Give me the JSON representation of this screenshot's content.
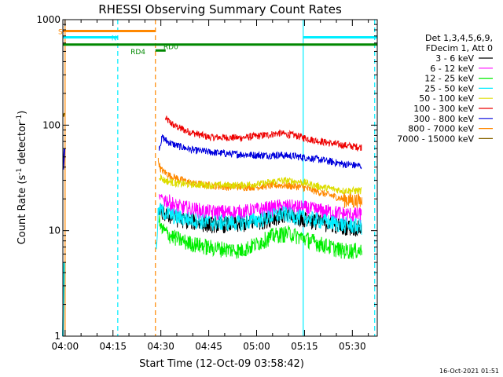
{
  "chart_data": {
    "type": "line",
    "title": "RHESSI Observing Summary Count Rates",
    "xlabel": "Start Time (12-Oct-09 03:58:42)",
    "ylabel_main": "Count Rate (s",
    "ylabel_sup1": "-1",
    "ylabel_mid": " detector",
    "ylabel_sup2": "-1",
    "ylabel_end": ")",
    "x_range_minutes": [
      -0.7,
      97.8
    ],
    "y_log_range": [
      1,
      1000
    ],
    "x_ticks": [
      {
        "min": 0,
        "label": "04:00"
      },
      {
        "min": 15,
        "label": "04:15"
      },
      {
        "min": 30,
        "label": "04:30"
      },
      {
        "min": 45,
        "label": "04:45"
      },
      {
        "min": 60,
        "label": "05:00"
      },
      {
        "min": 75,
        "label": "05:15"
      },
      {
        "min": 90,
        "label": "05:30"
      }
    ],
    "y_ticks": [
      {
        "value": 1,
        "label": "1"
      },
      {
        "value": 10,
        "label": "10"
      },
      {
        "value": 100,
        "label": "100"
      },
      {
        "value": 1000,
        "label": "1000"
      }
    ],
    "legend": {
      "position": "right",
      "header1": "Det 1,3,4,5,6,9,",
      "header2": "FDecim 1, Att 0",
      "entries": [
        {
          "label": "3 - 6 keV",
          "color": "#000000"
        },
        {
          "label": "6 - 12 keV",
          "color": "#ff00ff"
        },
        {
          "label": "12 - 25 keV",
          "color": "#00ee00"
        },
        {
          "label": "25 - 50 keV",
          "color": "#00eeff"
        },
        {
          "label": "50 - 100 keV",
          "color": "#dddd00"
        },
        {
          "label": "100 - 300 keV",
          "color": "#ee0000"
        },
        {
          "label": "300 - 800 keV",
          "color": "#0000dd"
        },
        {
          "label": "800 - 7000 keV",
          "color": "#ff8800"
        },
        {
          "label": "7000 - 15000 keV",
          "color": "#886600"
        }
      ]
    },
    "series_segments": [
      {
        "name": "100 - 300 keV",
        "color": "#ee0000",
        "points": [
          [
            31.5,
            115
          ],
          [
            34,
            100
          ],
          [
            38,
            88
          ],
          [
            45,
            77
          ],
          [
            55,
            76
          ],
          [
            62,
            80
          ],
          [
            67,
            84
          ],
          [
            72,
            80
          ],
          [
            78,
            72
          ],
          [
            85,
            66
          ],
          [
            90,
            63
          ],
          [
            93,
            62
          ]
        ]
      },
      {
        "name": "300 - 800 keV",
        "color": "#0000dd",
        "points": [
          [
            29.5,
            62
          ],
          [
            30.5,
            77
          ],
          [
            32,
            70
          ],
          [
            35,
            64
          ],
          [
            40,
            58
          ],
          [
            50,
            54
          ],
          [
            60,
            52
          ],
          [
            68,
            52
          ],
          [
            74,
            50
          ],
          [
            80,
            47
          ],
          [
            87,
            43
          ],
          [
            93,
            41
          ]
        ]
      },
      {
        "name": "800 - 7000 keV",
        "color": "#ff8800",
        "points": [
          [
            29.2,
            46
          ],
          [
            30,
            38
          ],
          [
            33,
            33
          ],
          [
            40,
            28
          ],
          [
            50,
            26
          ],
          [
            60,
            26
          ],
          [
            67,
            27
          ],
          [
            74,
            26
          ],
          [
            80,
            23
          ],
          [
            87,
            20
          ],
          [
            93,
            19
          ]
        ]
      },
      {
        "name": "50 - 100 keV",
        "color": "#dddd00",
        "points": [
          [
            29.5,
            33
          ],
          [
            31,
            30
          ],
          [
            35,
            28
          ],
          [
            45,
            27
          ],
          [
            55,
            27
          ],
          [
            62,
            28
          ],
          [
            68,
            30
          ],
          [
            74,
            29
          ],
          [
            80,
            26
          ],
          [
            87,
            24
          ],
          [
            93,
            24
          ]
        ]
      },
      {
        "name": "6 - 12 keV",
        "color": "#ff00ff",
        "points": [
          [
            29.5,
            21
          ],
          [
            31,
            20
          ],
          [
            35,
            17
          ],
          [
            45,
            15
          ],
          [
            55,
            15
          ],
          [
            62,
            16
          ],
          [
            68,
            17
          ],
          [
            74,
            16.5
          ],
          [
            80,
            15.5
          ],
          [
            87,
            14.5
          ],
          [
            93,
            14
          ]
        ]
      },
      {
        "name": "3 - 6 keV",
        "color": "#000000",
        "points": [
          [
            29.5,
            16
          ],
          [
            31,
            14.5
          ],
          [
            35,
            13
          ],
          [
            45,
            11.5
          ],
          [
            55,
            11.5
          ],
          [
            62,
            12.5
          ],
          [
            68,
            14
          ],
          [
            74,
            13
          ],
          [
            80,
            12
          ],
          [
            87,
            11
          ],
          [
            93,
            10.5
          ]
        ]
      },
      {
        "name": "25 - 50 keV",
        "color": "#00eeff",
        "points": [
          [
            28.6,
            7
          ],
          [
            29.2,
            16
          ],
          [
            31,
            15
          ],
          [
            35,
            13.5
          ],
          [
            45,
            12
          ],
          [
            55,
            12
          ],
          [
            62,
            13
          ],
          [
            68,
            14.5
          ],
          [
            74,
            13.5
          ],
          [
            80,
            12.5
          ],
          [
            87,
            11.5
          ],
          [
            93,
            11
          ]
        ]
      },
      {
        "name": "12 - 25 keV",
        "color": "#00ee00",
        "points": [
          [
            29.4,
            13
          ],
          [
            30,
            10.5
          ],
          [
            33,
            9
          ],
          [
            38,
            7.8
          ],
          [
            45,
            7
          ],
          [
            55,
            6.5
          ],
          [
            60,
            7.5
          ],
          [
            65,
            9
          ],
          [
            70,
            9.5
          ],
          [
            75,
            8.5
          ],
          [
            80,
            7.5
          ],
          [
            87,
            6.5
          ],
          [
            93,
            6.5
          ]
        ]
      },
      {
        "name": "25 - 50 keV",
        "color": "#00eeff",
        "points": [
          [
            -0.7,
            1
          ],
          [
            -0.3,
            5
          ]
        ]
      },
      {
        "name": "300 - 800 keV",
        "color": "#0000dd",
        "points": [
          [
            -0.6,
            38
          ],
          [
            -0.2,
            60
          ]
        ]
      },
      {
        "name": "7000 - 15000 keV",
        "color": "#886600",
        "points": [
          [
            -0.6,
            120
          ],
          [
            -0.2,
            130
          ]
        ]
      }
    ],
    "flag_bars": [
      {
        "label": "S",
        "color": "#ff8800",
        "segments": [
          [
            -0.7,
            28.3
          ]
        ],
        "value": 780
      },
      {
        "label": "N",
        "color": "#00eeff",
        "segments": [
          [
            -0.7,
            16.5
          ],
          [
            74.6,
            97.8
          ]
        ],
        "value": 680
      },
      {
        "label": "RD4",
        "color": "#008800",
        "segments": [
          [
            -0.7,
            97.8
          ]
        ],
        "value": 580
      },
      {
        "label": "RD0",
        "color": "#008800",
        "segments": [
          [
            28.3,
            31.5
          ]
        ],
        "value": 510
      }
    ],
    "vertical_lines": [
      {
        "min": 0.0,
        "color": "#ff8800",
        "style": "solid"
      },
      {
        "min": 16.5,
        "color": "#00eeff",
        "style": "dashed"
      },
      {
        "min": 28.3,
        "color": "#ff8800",
        "style": "dashed"
      },
      {
        "min": 74.6,
        "color": "#00eeff",
        "style": "solid"
      },
      {
        "min": 97.0,
        "color": "#00eeff",
        "style": "dashed"
      }
    ],
    "timestamp": "16-Oct-2021 01:51"
  }
}
